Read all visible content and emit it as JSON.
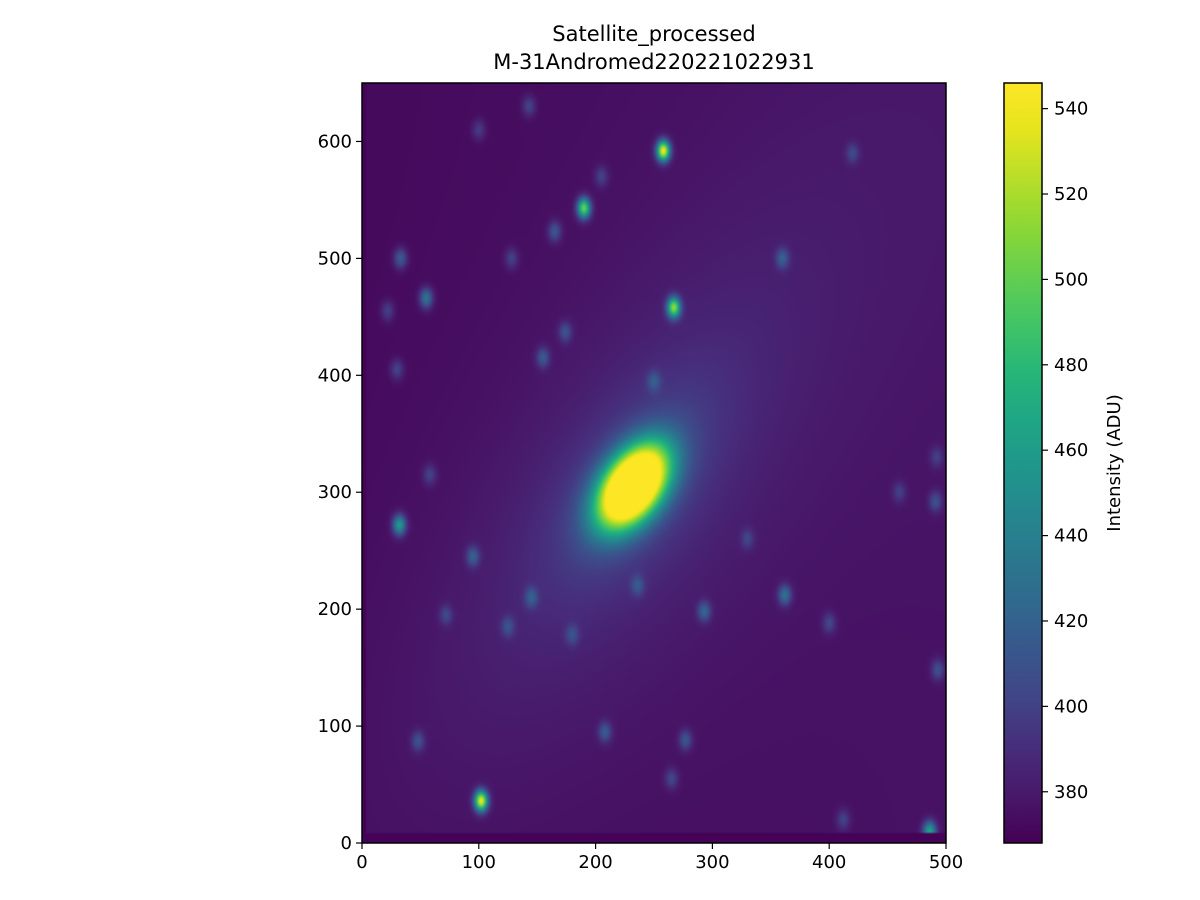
{
  "chart_data": {
    "type": "heatmap",
    "title_lines": [
      "Satellite_processed",
      "M-31Andromed220221022931"
    ],
    "xlim": [
      0,
      500
    ],
    "ylim": [
      0,
      650
    ],
    "x_ticks": [
      0,
      100,
      200,
      300,
      400,
      500
    ],
    "y_ticks": [
      0,
      100,
      200,
      300,
      400,
      500,
      600
    ],
    "grid": false,
    "colormap": "viridis",
    "colorbar": {
      "label": "Intensity (ADU)",
      "range": [
        368,
        546
      ],
      "ticks": [
        380,
        400,
        420,
        440,
        460,
        480,
        500,
        520,
        540
      ]
    },
    "background_level": 372,
    "galaxy": {
      "core_center": [
        232,
        305
      ],
      "core_peak": 546,
      "halo_peak": 395,
      "position_angle_deg": 35
    },
    "bright_stars": [
      {
        "x": 102,
        "y": 36,
        "peak": 535
      },
      {
        "x": 258,
        "y": 592,
        "peak": 538
      },
      {
        "x": 267,
        "y": 458,
        "peak": 505
      },
      {
        "x": 190,
        "y": 543,
        "peak": 500
      },
      {
        "x": 32,
        "y": 272,
        "peak": 455
      },
      {
        "x": 486,
        "y": 10,
        "peak": 460
      }
    ],
    "faint_stars": [
      {
        "x": 55,
        "y": 466,
        "peak": 430
      },
      {
        "x": 33,
        "y": 500,
        "peak": 415
      },
      {
        "x": 362,
        "y": 212,
        "peak": 425
      },
      {
        "x": 293,
        "y": 198,
        "peak": 415
      },
      {
        "x": 95,
        "y": 245,
        "peak": 412
      },
      {
        "x": 155,
        "y": 415,
        "peak": 410
      },
      {
        "x": 165,
        "y": 523,
        "peak": 410
      },
      {
        "x": 360,
        "y": 500,
        "peak": 410
      },
      {
        "x": 277,
        "y": 88,
        "peak": 408
      },
      {
        "x": 208,
        "y": 95,
        "peak": 410
      },
      {
        "x": 48,
        "y": 87,
        "peak": 405
      },
      {
        "x": 493,
        "y": 148,
        "peak": 405
      },
      {
        "x": 491,
        "y": 292,
        "peak": 405
      },
      {
        "x": 125,
        "y": 185,
        "peak": 400
      },
      {
        "x": 145,
        "y": 210,
        "peak": 405
      },
      {
        "x": 250,
        "y": 395,
        "peak": 400
      },
      {
        "x": 400,
        "y": 188,
        "peak": 400
      },
      {
        "x": 174,
        "y": 437,
        "peak": 405
      },
      {
        "x": 205,
        "y": 570,
        "peak": 398
      },
      {
        "x": 30,
        "y": 405,
        "peak": 400
      },
      {
        "x": 22,
        "y": 455,
        "peak": 398
      },
      {
        "x": 58,
        "y": 315,
        "peak": 398
      },
      {
        "x": 265,
        "y": 55,
        "peak": 400
      },
      {
        "x": 143,
        "y": 630,
        "peak": 400
      },
      {
        "x": 412,
        "y": 20,
        "peak": 398
      },
      {
        "x": 420,
        "y": 590,
        "peak": 398
      },
      {
        "x": 100,
        "y": 610,
        "peak": 396
      },
      {
        "x": 180,
        "y": 178,
        "peak": 398
      },
      {
        "x": 128,
        "y": 500,
        "peak": 398
      },
      {
        "x": 72,
        "y": 195,
        "peak": 398
      },
      {
        "x": 236,
        "y": 220,
        "peak": 400
      },
      {
        "x": 460,
        "y": 300,
        "peak": 395
      },
      {
        "x": 492,
        "y": 330,
        "peak": 395
      },
      {
        "x": 330,
        "y": 260,
        "peak": 395
      }
    ]
  }
}
